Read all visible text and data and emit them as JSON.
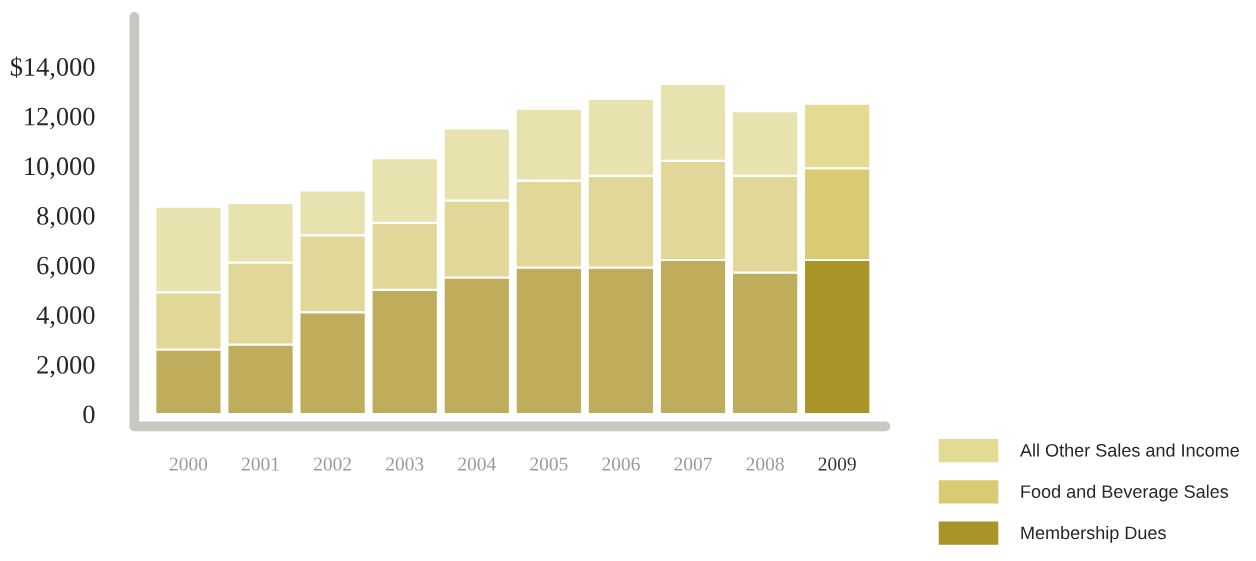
{
  "chart_data": {
    "type": "bar",
    "stacked": true,
    "categories": [
      "2000",
      "2001",
      "2002",
      "2003",
      "2004",
      "2005",
      "2006",
      "2007",
      "2008",
      "2009"
    ],
    "series": [
      {
        "name": "Membership Dues",
        "color": "#a99427",
        "colors": [
          "#c0ad5c",
          "#c0ad5c",
          "#c0ad5c",
          "#c0ad5c",
          "#c0ad5c",
          "#c0ad5c",
          "#c0ad5c",
          "#c0ad5c",
          "#c0ad5c",
          "#a99427"
        ],
        "values": [
          2600,
          2800,
          4100,
          5000,
          5500,
          5900,
          5900,
          6200,
          5700,
          6200
        ]
      },
      {
        "name": "Food and Beverage Sales",
        "color": "#d9cb72",
        "colors": [
          "#e0d799",
          "#e0d799",
          "#e0d799",
          "#e0d799",
          "#e0d799",
          "#e0d799",
          "#e0d799",
          "#e0d799",
          "#e0d799",
          "#d9cb72"
        ],
        "values": [
          2300,
          3300,
          3100,
          2700,
          3100,
          3500,
          3700,
          4000,
          3900,
          3700
        ]
      },
      {
        "name": "All Other Sales and Income",
        "color": "#e3db92",
        "colors": [
          "#e8e3ae",
          "#e8e3ae",
          "#e8e3ae",
          "#e8e3ae",
          "#e8e3ae",
          "#e8e3ae",
          "#e8e3ae",
          "#e8e3ae",
          "#e8e3ae",
          "#e3db92"
        ],
        "values": [
          3450,
          2400,
          1800,
          2600,
          2900,
          2900,
          3100,
          3100,
          2600,
          2600
        ]
      }
    ],
    "ylim": [
      -500,
      16000
    ],
    "yticks": [
      0,
      {
        "value": 2000,
        "label": "2,000"
      },
      {
        "value": 4000,
        "label": "4,000"
      },
      {
        "value": 6000,
        "label": "6,000"
      },
      {
        "value": 8000,
        "label": "8,000"
      },
      {
        "value": 10000,
        "label": "10,000"
      },
      {
        "value": 12000,
        "label": "12,000"
      },
      {
        "value": 14000,
        "label": "$14,000"
      }
    ],
    "grid": false,
    "legend": "bottom right"
  }
}
